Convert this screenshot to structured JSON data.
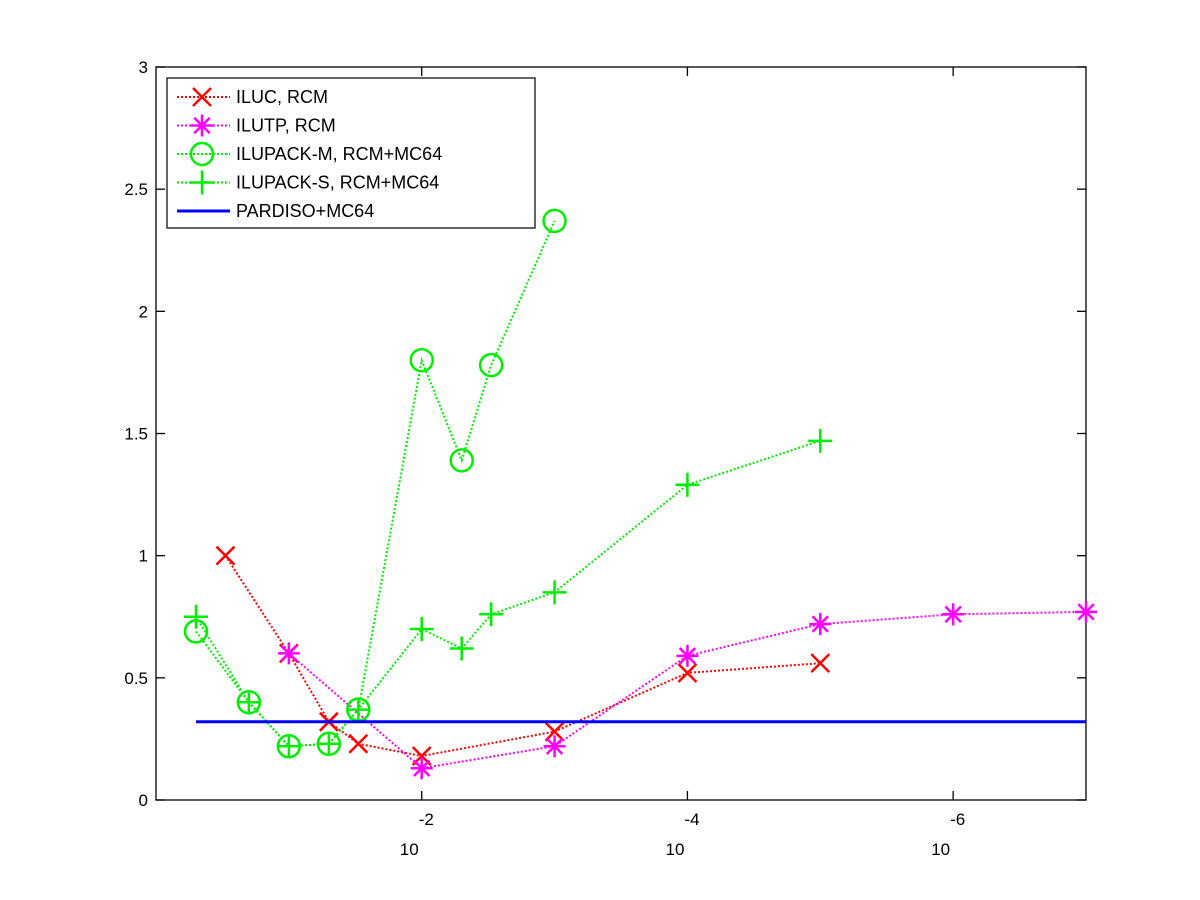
{
  "chart_data": {
    "type": "line",
    "x_scale": "log-reversed",
    "xlim": [
      1,
      1e-07
    ],
    "ylim": [
      0,
      3
    ],
    "grid": false,
    "legend_placement": "top-left",
    "y_ticks": [
      {
        "value": 0,
        "label": "0"
      },
      {
        "value": 0.5,
        "label": "0.5"
      },
      {
        "value": 1,
        "label": "1"
      },
      {
        "value": 1.5,
        "label": "1.5"
      },
      {
        "value": 2,
        "label": "2"
      },
      {
        "value": 2.5,
        "label": "2.5"
      },
      {
        "value": 3,
        "label": "3"
      }
    ],
    "x_ticks": [
      {
        "value": 0.01,
        "base": "10",
        "exponent": "-2"
      },
      {
        "value": 0.0001,
        "base": "10",
        "exponent": "-4"
      },
      {
        "value": 1e-06,
        "base": "10",
        "exponent": "-6"
      }
    ],
    "series": [
      {
        "name": "ILUC, RCM",
        "color": "#ff0000",
        "marker": "x",
        "x": [
          0.3,
          0.1,
          0.05,
          0.03,
          0.01,
          0.001,
          0.0001,
          1e-05
        ],
        "y": [
          1.0,
          0.6,
          0.32,
          0.23,
          0.18,
          0.28,
          0.52,
          0.56
        ]
      },
      {
        "name": "ILUTP, RCM",
        "color": "#ff00ff",
        "marker": "asterisk",
        "x": [
          0.1,
          0.01,
          0.001,
          0.0001,
          1e-05,
          1e-06,
          1e-07
        ],
        "y": [
          0.6,
          0.13,
          0.22,
          0.59,
          0.72,
          0.76,
          0.77
        ]
      },
      {
        "name": "ILUPACK-M, RCM+MC64",
        "color": "#00ee00",
        "marker": "circle",
        "x": [
          0.5,
          0.2,
          0.1,
          0.05,
          0.03,
          0.01,
          0.005,
          0.003,
          0.001
        ],
        "y": [
          0.69,
          0.4,
          0.22,
          0.23,
          0.37,
          1.8,
          1.39,
          1.78,
          2.37
        ]
      },
      {
        "name": "ILUPACK-S, RCM+MC64",
        "color": "#00ee00",
        "marker": "plus",
        "x": [
          0.5,
          0.2,
          0.1,
          0.05,
          0.03,
          0.01,
          0.005,
          0.003,
          0.001,
          0.0001,
          1e-05
        ],
        "y": [
          0.75,
          0.4,
          0.22,
          0.23,
          0.37,
          0.7,
          0.62,
          0.76,
          0.85,
          1.29,
          1.47
        ]
      },
      {
        "name": "PARDISO+MC64",
        "color": "#0000ff",
        "marker": "none",
        "x": [
          0.5,
          1e-07
        ],
        "y": [
          0.32,
          0.32
        ]
      }
    ]
  }
}
